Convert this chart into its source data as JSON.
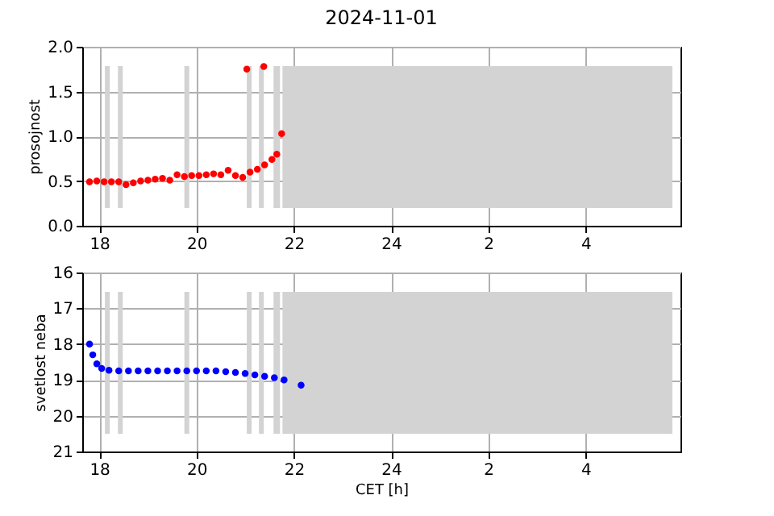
{
  "chart_data": [
    {
      "type": "scatter",
      "title": "2024-11-01",
      "ylabel": "prosojnost",
      "x": [
        "2024-11-01T17:48",
        "2024-11-01T17:57",
        "2024-11-01T18:06",
        "2024-11-01T18:15",
        "2024-11-01T18:24",
        "2024-11-01T18:33",
        "2024-11-01T18:42",
        "2024-11-01T18:51",
        "2024-11-01T19:00",
        "2024-11-01T19:09",
        "2024-11-01T19:18",
        "2024-11-01T19:27",
        "2024-11-01T19:36",
        "2024-11-01T19:45",
        "2024-11-01T19:54",
        "2024-11-01T20:03",
        "2024-11-01T20:12",
        "2024-11-01T20:21",
        "2024-11-01T20:30",
        "2024-11-01T20:39",
        "2024-11-01T20:48",
        "2024-11-01T20:57",
        "2024-11-01T21:02",
        "2024-11-01T21:06",
        "2024-11-01T21:15",
        "2024-11-01T21:23",
        "2024-11-01T21:24",
        "2024-11-01T21:33",
        "2024-11-01T21:39",
        "2024-11-01T21:45"
      ],
      "series": [
        {
          "color": "#ff0000",
          "values": [
            0.49,
            0.5,
            0.49,
            0.49,
            0.49,
            0.46,
            0.48,
            0.5,
            0.51,
            0.52,
            0.53,
            0.51,
            0.57,
            0.55,
            0.56,
            0.56,
            0.57,
            0.58,
            0.57,
            0.62,
            0.56,
            0.54,
            1.75,
            0.6,
            0.63,
            1.78,
            0.68,
            0.74,
            0.8,
            1.03
          ]
        }
      ],
      "xlim": [
        "2024-11-01T17:39",
        "2024-11-02T05:57"
      ],
      "xticks": [
        {
          "value": "2024-11-01T18:00",
          "label": "18"
        },
        {
          "value": "2024-11-01T20:00",
          "label": "20"
        },
        {
          "value": "2024-11-01T22:00",
          "label": "22"
        },
        {
          "value": "2024-11-02T00:00",
          "label": "24"
        },
        {
          "value": "2024-11-02T02:00",
          "label": "2"
        },
        {
          "value": "2024-11-02T04:00",
          "label": "4"
        }
      ],
      "ylim": [
        0,
        2
      ],
      "yticks": [
        {
          "value": 0,
          "label": "0.0"
        },
        0.5,
        {
          "value": 1,
          "label": "1.0"
        },
        1.5,
        {
          "value": 2,
          "label": "2.0"
        }
      ],
      "grid": true,
      "marker": "circle",
      "bands": [
        {
          "axis": "x",
          "from": "2024-11-01T18:07",
          "to": "2024-11-01T18:13",
          "color": "#d3d3d3"
        },
        {
          "axis": "x",
          "from": "2024-11-01T18:23",
          "to": "2024-11-01T18:29",
          "color": "#d3d3d3"
        },
        {
          "axis": "x",
          "from": "2024-11-01T19:45",
          "to": "2024-11-01T19:51",
          "color": "#d3d3d3"
        },
        {
          "axis": "x",
          "from": "2024-11-01T21:02",
          "to": "2024-11-01T21:08",
          "color": "#d3d3d3"
        },
        {
          "axis": "x",
          "from": "2024-11-01T21:17",
          "to": "2024-11-01T21:23",
          "color": "#d3d3d3"
        },
        {
          "axis": "x",
          "from": "2024-11-01T21:35",
          "to": "2024-11-01T21:43",
          "color": "#d3d3d3"
        },
        {
          "axis": "x",
          "from": "2024-11-01T21:46",
          "to": "2024-11-02T05:47",
          "color": "#d3d3d3"
        }
      ]
    },
    {
      "type": "scatter",
      "ylabel": "svetlost neba",
      "xlabel": "CET [h]",
      "x": [
        "2024-11-01T17:48",
        "2024-11-01T17:52",
        "2024-11-01T17:57",
        "2024-11-01T18:03",
        "2024-11-01T18:12",
        "2024-11-01T18:24",
        "2024-11-01T18:36",
        "2024-11-01T18:48",
        "2024-11-01T19:00",
        "2024-11-01T19:12",
        "2024-11-01T19:24",
        "2024-11-01T19:36",
        "2024-11-01T19:48",
        "2024-11-01T20:00",
        "2024-11-01T20:12",
        "2024-11-01T20:24",
        "2024-11-01T20:36",
        "2024-11-01T20:48",
        "2024-11-01T21:00",
        "2024-11-01T21:12",
        "2024-11-01T21:24",
        "2024-11-01T21:36",
        "2024-11-01T21:48",
        "2024-11-01T22:09"
      ],
      "series": [
        {
          "color": "#0000ff",
          "values": [
            18.0,
            18.3,
            18.55,
            18.68,
            18.73,
            18.75,
            18.75,
            18.75,
            18.75,
            18.75,
            18.75,
            18.75,
            18.75,
            18.75,
            18.75,
            18.75,
            18.77,
            18.79,
            18.82,
            18.86,
            18.9,
            18.94,
            19.0,
            19.15
          ]
        }
      ],
      "xlim": [
        "2024-11-01T17:39",
        "2024-11-02T05:57"
      ],
      "xticks": [
        {
          "value": "2024-11-01T18:00",
          "label": "18"
        },
        {
          "value": "2024-11-01T20:00",
          "label": "20"
        },
        {
          "value": "2024-11-01T22:00",
          "label": "22"
        },
        {
          "value": "2024-11-02T00:00",
          "label": "24"
        },
        {
          "value": "2024-11-02T02:00",
          "label": "2"
        },
        {
          "value": "2024-11-02T04:00",
          "label": "4"
        }
      ],
      "ylim": [
        21,
        16
      ],
      "yticks": [
        16,
        17,
        18,
        19,
        20,
        21
      ],
      "grid": true,
      "marker": "circle",
      "bands": [
        {
          "axis": "x",
          "from": "2024-11-01T18:07",
          "to": "2024-11-01T18:13",
          "color": "#d3d3d3"
        },
        {
          "axis": "x",
          "from": "2024-11-01T18:23",
          "to": "2024-11-01T18:29",
          "color": "#d3d3d3"
        },
        {
          "axis": "x",
          "from": "2024-11-01T19:45",
          "to": "2024-11-01T19:51",
          "color": "#d3d3d3"
        },
        {
          "axis": "x",
          "from": "2024-11-01T21:02",
          "to": "2024-11-01T21:08",
          "color": "#d3d3d3"
        },
        {
          "axis": "x",
          "from": "2024-11-01T21:17",
          "to": "2024-11-01T21:23",
          "color": "#d3d3d3"
        },
        {
          "axis": "x",
          "from": "2024-11-01T21:35",
          "to": "2024-11-01T21:43",
          "color": "#d3d3d3"
        },
        {
          "axis": "x",
          "from": "2024-11-01T21:46",
          "to": "2024-11-02T05:47",
          "color": "#d3d3d3"
        }
      ]
    }
  ]
}
